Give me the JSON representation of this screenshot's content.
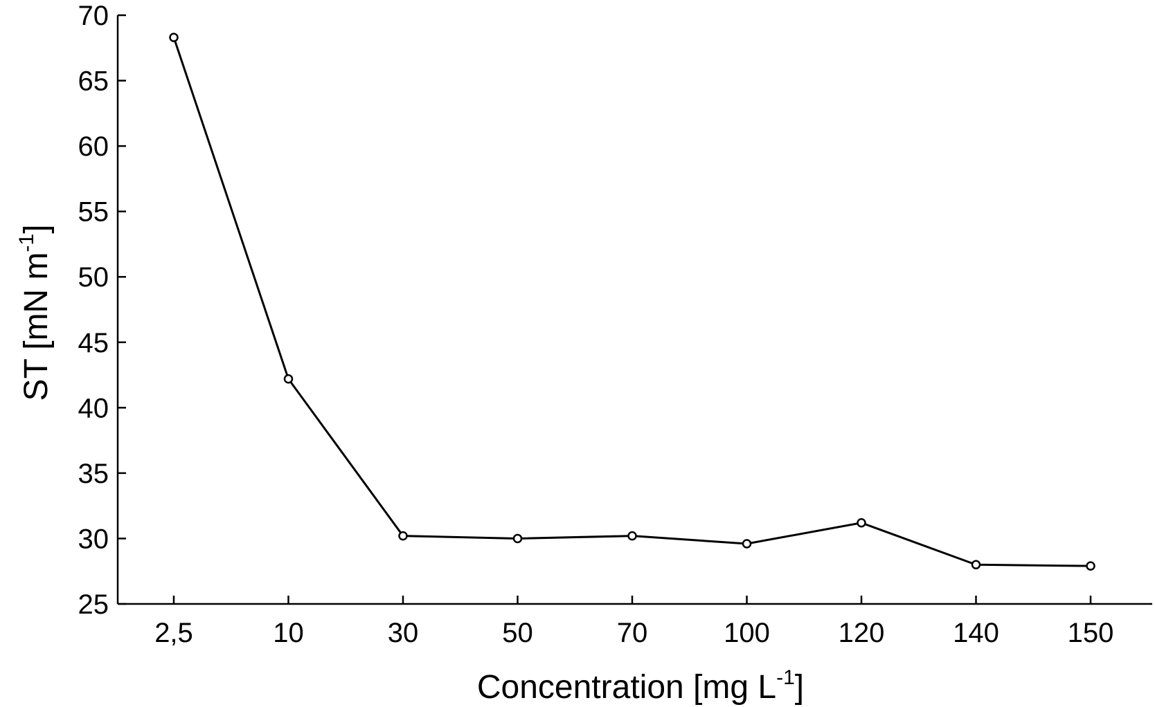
{
  "chart_data": {
    "type": "line",
    "categories": [
      "2,5",
      "10",
      "30",
      "50",
      "70",
      "100",
      "120",
      "140",
      "150"
    ],
    "series": [
      {
        "values": [
          68.3,
          42.2,
          30.2,
          30.0,
          30.2,
          29.6,
          31.2,
          28.0,
          27.9
        ]
      }
    ],
    "xlabel": {
      "main": "Concentration [mg L",
      "sup": "-1",
      "end": "]"
    },
    "ylabel": {
      "main": "ST [mN m",
      "sup": "-1",
      "end": "]"
    },
    "ylim": [
      25,
      70
    ],
    "yticks": [
      25,
      30,
      35,
      40,
      45,
      50,
      55,
      60,
      65,
      70
    ],
    "grid": false,
    "marker": "open-circle",
    "line_color": "#000000"
  }
}
